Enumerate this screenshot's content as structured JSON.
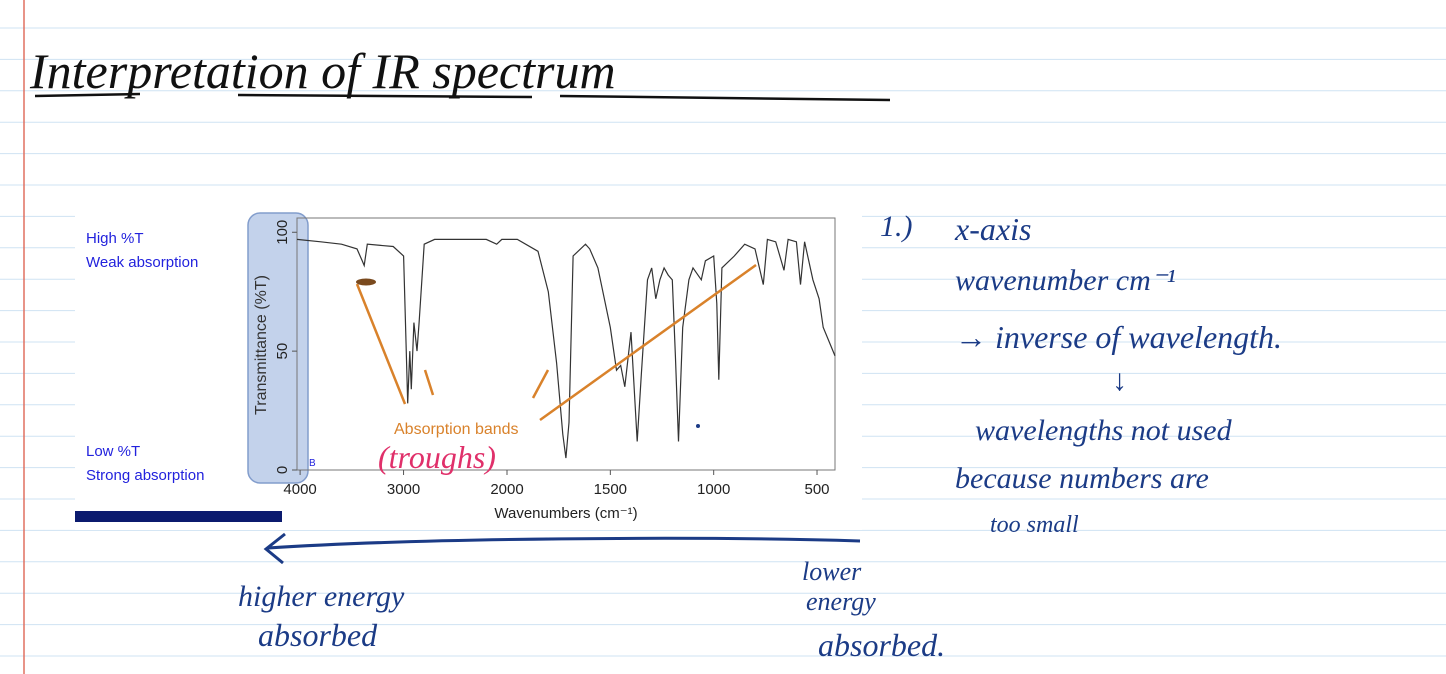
{
  "title": "Interpretation of IR spectrum",
  "spectrum": {
    "type": "line",
    "y_label": "Transmittance (%T)",
    "x_label": "Wavenumbers (cm⁻¹)",
    "high_label": "High %T",
    "high_note": "Weak absorption",
    "low_label": "Low %T",
    "low_note": "Strong absorption",
    "corner_label": "B",
    "annotation": "Absorption bands",
    "xlim": [
      4030,
      413
    ],
    "x_scale_break": 2000,
    "xticks": [
      4000,
      3000,
      2000,
      1500,
      1000,
      500
    ],
    "ylim": [
      0,
      106
    ],
    "yticks": [
      0,
      50,
      100
    ],
    "color": "#333333",
    "x": [
      4030,
      3800,
      3600,
      3450,
      3400,
      3380,
      3350,
      3100,
      3000,
      2980,
      2960,
      2940,
      2925,
      2900,
      2870,
      2850,
      2800,
      2700,
      2400,
      2200,
      2100,
      2050,
      1950,
      1850,
      1800,
      1760,
      1730,
      1715,
      1700,
      1680,
      1620,
      1600,
      1560,
      1500,
      1470,
      1450,
      1430,
      1400,
      1370,
      1350,
      1320,
      1300,
      1280,
      1260,
      1240,
      1220,
      1200,
      1185,
      1170,
      1150,
      1120,
      1100,
      1060,
      1040,
      1000,
      985,
      975,
      960,
      900,
      850,
      800,
      760,
      740,
      700,
      660,
      640,
      600,
      580,
      560,
      520,
      490,
      470,
      413
    ],
    "y": [
      97,
      96,
      95,
      93,
      88,
      86,
      95,
      94,
      90,
      60,
      28,
      50,
      34,
      62,
      50,
      62,
      95,
      97,
      97,
      97,
      95,
      97,
      97,
      92,
      75,
      45,
      15,
      5,
      20,
      90,
      95,
      93,
      85,
      60,
      42,
      44,
      35,
      58,
      12,
      40,
      80,
      85,
      72,
      80,
      85,
      82,
      80,
      48,
      12,
      60,
      80,
      85,
      80,
      88,
      90,
      70,
      38,
      85,
      90,
      95,
      93,
      78,
      97,
      96,
      84,
      97,
      96,
      78,
      96,
      80,
      72,
      60,
      48
    ]
  },
  "handwriting": {
    "troughs": "(troughs)",
    "notes": [
      "1.)",
      "x-axis",
      "wavenumber cm⁻¹",
      "→ inverse of wavelength.",
      "↓",
      "wavelengths not used",
      "because numbers are",
      "too small"
    ],
    "bottom_left": [
      "higher energy",
      "absorbed"
    ],
    "bottom_right": [
      "lower",
      "energy",
      "absorbed."
    ]
  }
}
